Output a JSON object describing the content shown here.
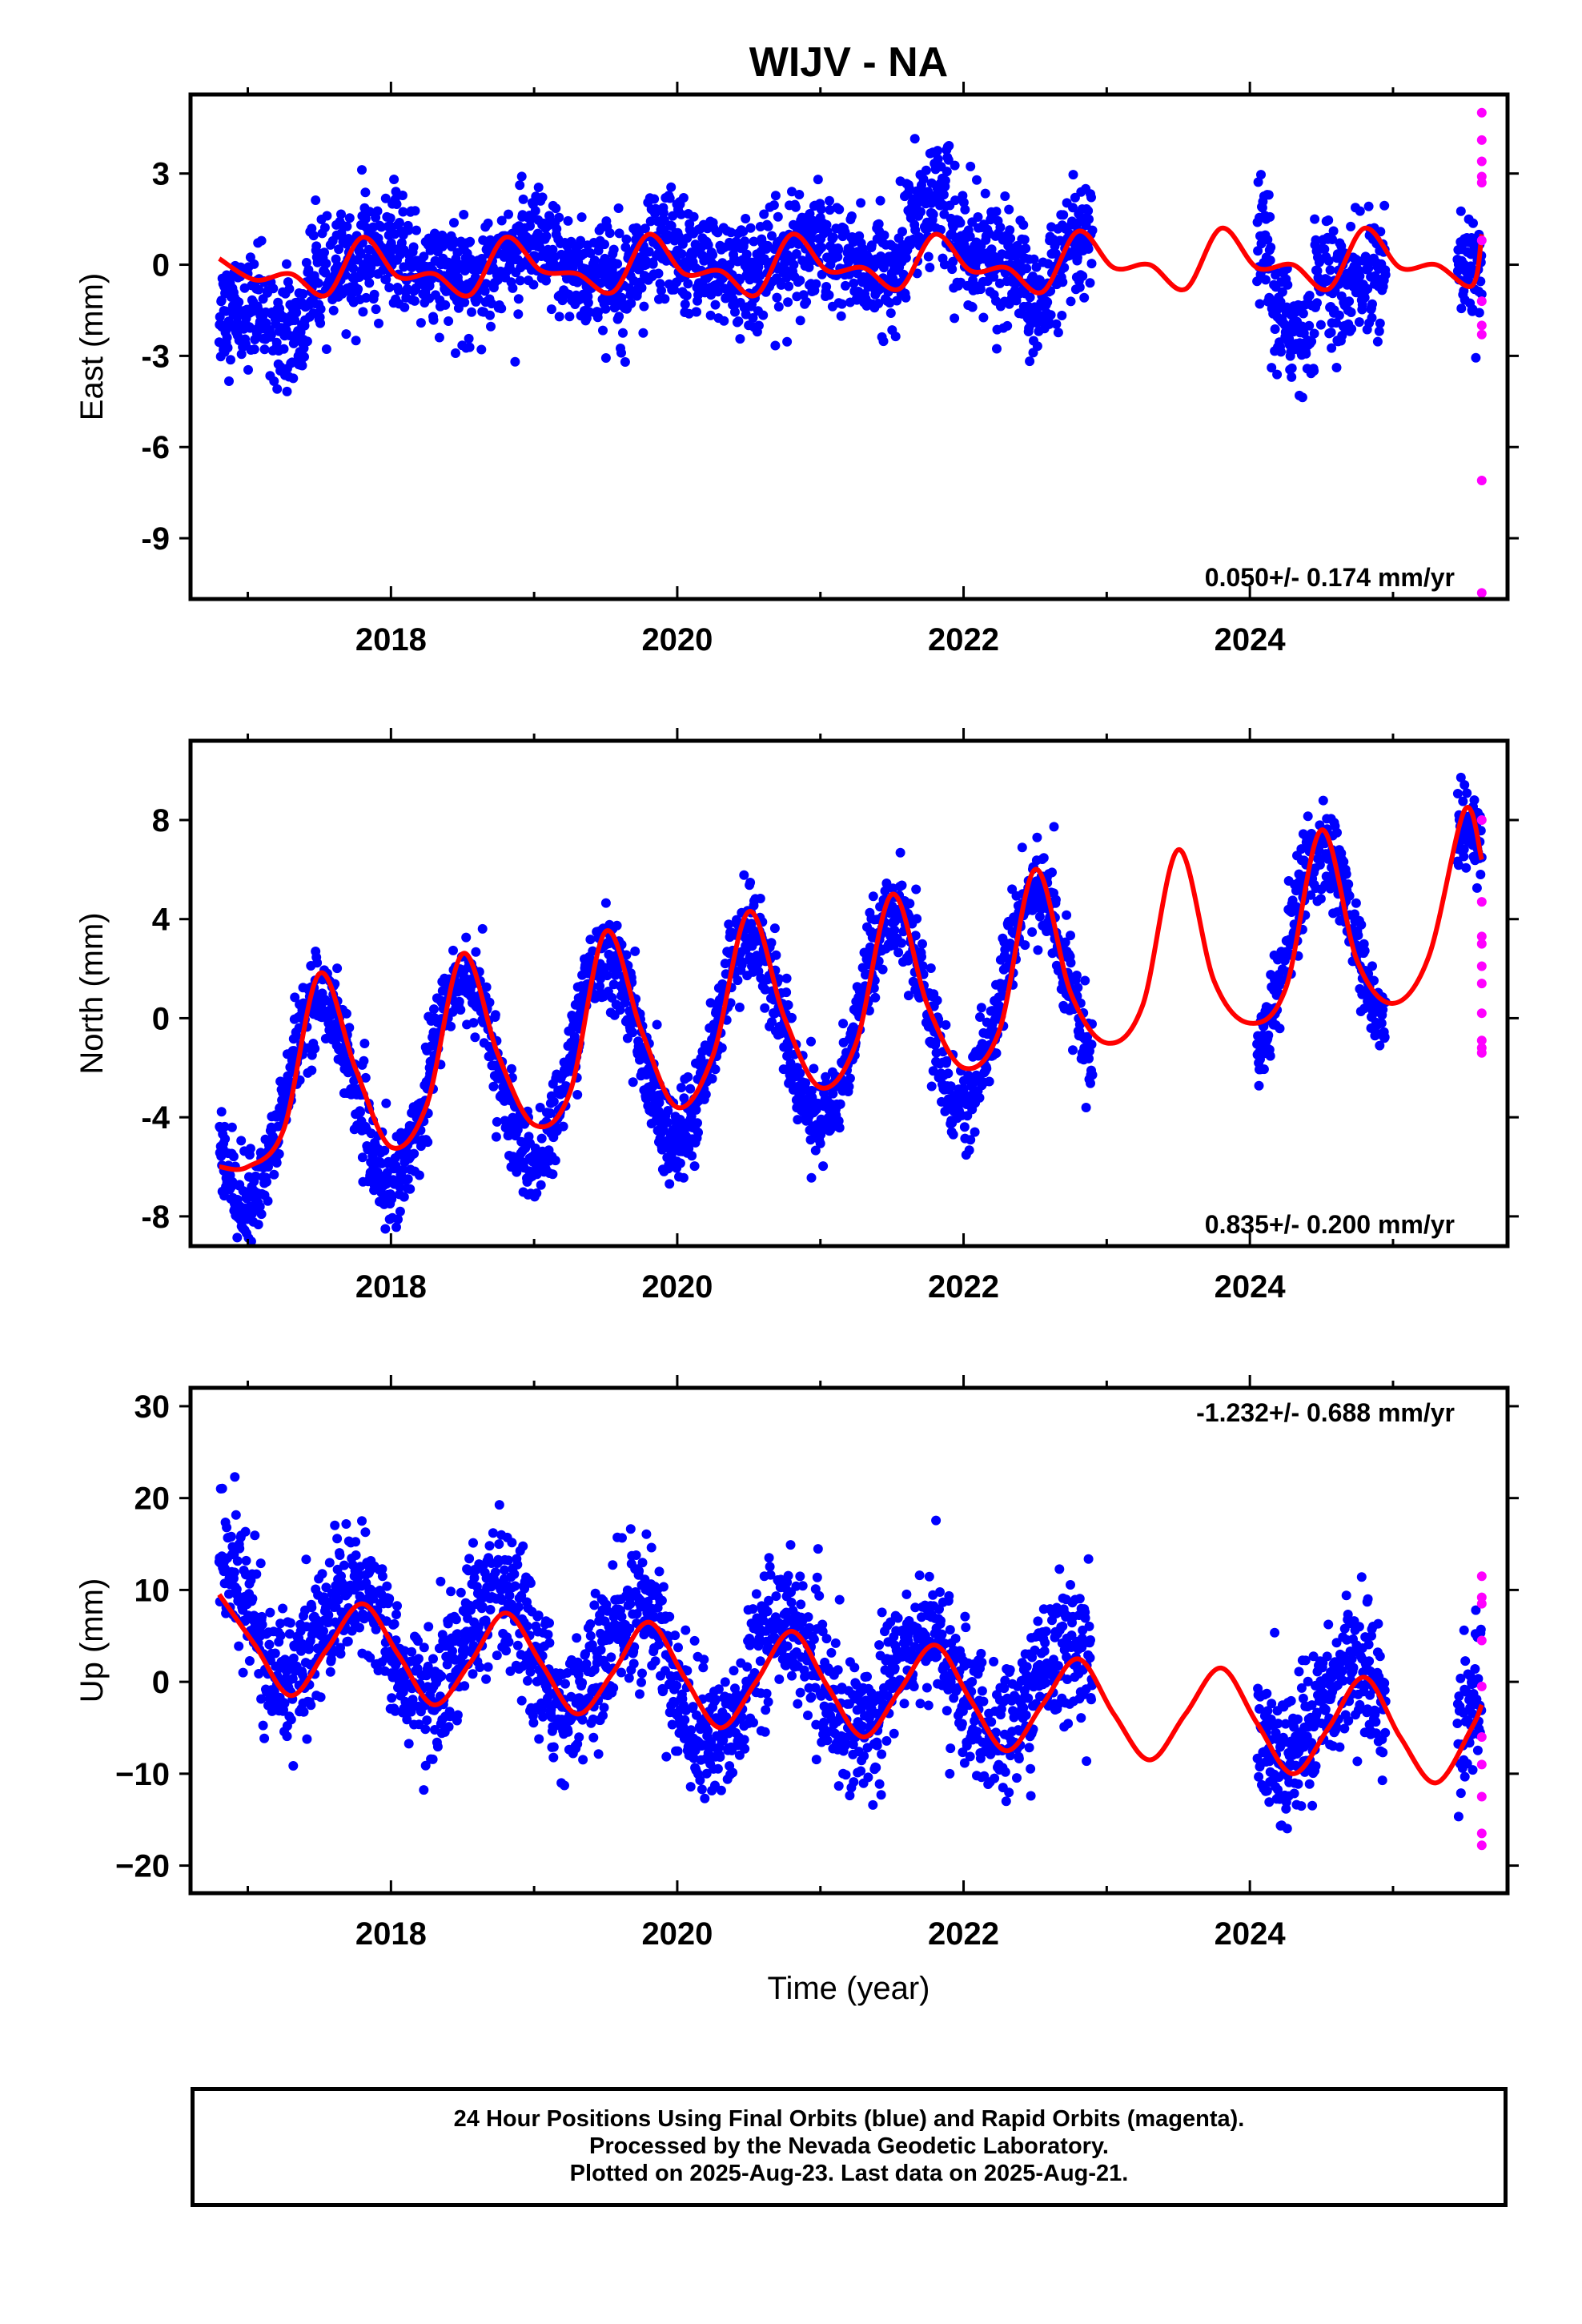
{
  "figure": {
    "title": "WIJV - NA",
    "xlabel": "Time (year)",
    "caption": [
      "24 Hour Positions Using Final Orbits (blue) and Rapid Orbits (magenta).",
      "Processed by the Nevada Geodetic Laboratory.",
      "Plotted on 2025-Aug-23. Last data on 2025-Aug-21."
    ],
    "colors": {
      "final_orbits": "#0000ff",
      "rapid_orbits": "#ff00ff",
      "model": "#ff0000",
      "frame": "#000000"
    }
  },
  "chart_data": [
    {
      "type": "scatter",
      "ylabel": "East (mm)",
      "rate_text": "0.050+/- 0.174 mm/yr",
      "rate_position": "bottom-right",
      "xlim": [
        2016.6,
        2025.8
      ],
      "ylim": [
        -11.0,
        5.6
      ],
      "xticks": [
        2018,
        2020,
        2022,
        2024
      ],
      "yticks": [
        3,
        0,
        -3,
        -6,
        -9
      ],
      "ytick_labels": [
        "3",
        "0",
        "-3",
        "-6",
        "-9"
      ],
      "grid": false,
      "series": [
        {
          "kind": "points",
          "segments": [
            [
              2016.8,
              2022.9
            ],
            [
              2024.05,
              2024.95
            ],
            [
              2025.45,
              2025.62
            ]
          ],
          "trend": {
            "value_at_2021": 0.1,
            "rate": 0.05
          },
          "seasonal": {
            "amp": 0.5,
            "phase": 0.95
          },
          "scatter": 0.9,
          "anomalies": [
            {
              "start": 2016.8,
              "end": 2017.4,
              "offset": -1.8
            },
            {
              "start": 2021.6,
              "end": 2021.9,
              "offset": 1.8
            },
            {
              "start": 2022.45,
              "end": 2022.6,
              "offset": -1.2
            },
            {
              "start": 2024.15,
              "end": 2024.45,
              "offset": -2.0
            },
            {
              "start": 2024.55,
              "end": 2024.95,
              "offset": -1.0
            }
          ]
        },
        {
          "kind": "rapid",
          "x": [
            2025.62,
            2025.62,
            2025.62,
            2025.62,
            2025.62,
            2025.62,
            2025.62,
            2025.62,
            2025.62,
            2025.62,
            2025.62
          ],
          "values": [
            5.0,
            4.1,
            3.4,
            2.7,
            2.9,
            0.8,
            -1.2,
            -2.0,
            -2.3,
            -7.1,
            -10.8
          ]
        },
        {
          "kind": "model",
          "x": [
            2016.8,
            2017.05,
            2017.3,
            2017.55,
            2017.8,
            2018.05,
            2018.3,
            2018.55,
            2018.8,
            2019.05,
            2019.3,
            2019.55,
            2019.8,
            2020.05,
            2020.3,
            2020.55,
            2020.8,
            2021.05,
            2021.3,
            2021.55,
            2021.8,
            2022.05,
            2022.3,
            2022.55,
            2022.8,
            2023.05,
            2023.3,
            2023.55,
            2023.8,
            2024.05,
            2024.3,
            2024.55,
            2024.8,
            2025.05,
            2025.3,
            2025.55,
            2025.62
          ],
          "values": [
            0.2,
            -0.5,
            -0.3,
            -1.0,
            0.9,
            -0.4,
            -0.3,
            -1.0,
            0.9,
            -0.2,
            -0.3,
            -0.9,
            1.0,
            -0.3,
            -0.2,
            -1.0,
            1.0,
            -0.2,
            -0.1,
            -0.8,
            1.0,
            -0.2,
            -0.1,
            -0.9,
            1.1,
            -0.1,
            0.0,
            -0.8,
            1.2,
            -0.1,
            0.0,
            -0.8,
            1.2,
            -0.1,
            0.0,
            -0.7,
            1.0
          ]
        }
      ]
    },
    {
      "type": "scatter",
      "ylabel": "North (mm)",
      "rate_text": "0.835+/- 0.200 mm/yr",
      "rate_position": "bottom-right",
      "xlim": [
        2016.6,
        2025.8
      ],
      "ylim": [
        -9.2,
        11.2
      ],
      "xticks": [
        2018,
        2020,
        2022,
        2024
      ],
      "yticks": [
        8,
        4,
        0,
        -4,
        -8
      ],
      "ytick_labels": [
        "8",
        "4",
        "0",
        "-4",
        "-8"
      ],
      "grid": false,
      "series": [
        {
          "kind": "points",
          "segments": [
            [
              2016.8,
              2022.9
            ],
            [
              2024.05,
              2024.95
            ],
            [
              2025.45,
              2025.62
            ]
          ],
          "trend": {
            "value_at_2021": -0.2,
            "rate": 0.835
          },
          "seasonal": {
            "amp": 4.0,
            "phase": 0.5
          },
          "scatter": 0.9,
          "anomalies": []
        },
        {
          "kind": "rapid",
          "x": [
            2025.62,
            2025.62,
            2025.62,
            2025.62,
            2025.62,
            2025.62,
            2025.62,
            2025.62,
            2025.62,
            2025.62
          ],
          "values": [
            8.0,
            4.7,
            3.3,
            3.0,
            2.1,
            1.4,
            0.2,
            -0.9,
            -1.2,
            -1.4
          ]
        },
        {
          "kind": "model",
          "x": [
            2016.8,
            2017.0,
            2017.25,
            2017.5,
            2017.75,
            2018.0,
            2018.25,
            2018.5,
            2018.75,
            2019.0,
            2019.25,
            2019.5,
            2019.75,
            2020.0,
            2020.25,
            2020.5,
            2020.75,
            2021.0,
            2021.25,
            2021.5,
            2021.75,
            2022.0,
            2022.25,
            2022.5,
            2022.75,
            2023.0,
            2023.25,
            2023.5,
            2023.75,
            2024.0,
            2024.25,
            2024.5,
            2024.75,
            2025.0,
            2025.25,
            2025.5,
            2025.62
          ],
          "values": [
            -6.0,
            -6.0,
            -4.5,
            1.8,
            -2.0,
            -5.2,
            -3.5,
            2.6,
            -1.5,
            -4.3,
            -3.0,
            3.5,
            -0.5,
            -3.6,
            -1.5,
            4.3,
            0.0,
            -2.8,
            -1.0,
            5.0,
            0.5,
            -2.0,
            -0.5,
            6.0,
            1.0,
            -1.0,
            0.5,
            6.8,
            1.5,
            -0.2,
            1.2,
            7.6,
            2.3,
            0.6,
            2.5,
            8.4,
            6.4
          ]
        }
      ]
    },
    {
      "type": "scatter",
      "ylabel": "Up (mm)",
      "rate_text": "-1.232+/- 0.688 mm/yr",
      "rate_position": "top-right",
      "xlim": [
        2016.6,
        2025.8
      ],
      "ylim": [
        -23.0,
        32.0
      ],
      "xticks": [
        2018,
        2020,
        2022,
        2024
      ],
      "yticks": [
        30,
        20,
        10,
        0,
        -10,
        -20
      ],
      "ytick_labels": [
        "30",
        "20",
        "10",
        "0",
        "−10",
        "−20"
      ],
      "grid": false,
      "series": [
        {
          "kind": "points",
          "segments": [
            [
              2016.8,
              2022.9
            ],
            [
              2024.05,
              2024.95
            ],
            [
              2025.45,
              2025.62
            ]
          ],
          "trend": {
            "value_at_2021": 0.8,
            "rate": -1.232
          },
          "seasonal": {
            "amp": 5.5,
            "phase": 0.73
          },
          "scatter": 3.6,
          "anomalies": [
            {
              "start": 2016.8,
              "end": 2017.1,
              "offset": 4.0
            },
            {
              "start": 2019.95,
              "end": 2020.5,
              "offset": -3.0
            }
          ]
        },
        {
          "kind": "rapid",
          "x": [
            2025.62,
            2025.62,
            2025.62,
            2025.62,
            2025.62,
            2025.62,
            2025.62,
            2025.62,
            2025.62,
            2025.62
          ],
          "values": [
            11.5,
            9.2,
            8.5,
            4.5,
            -0.5,
            -6.0,
            -9.0,
            -12.5,
            -16.5,
            -17.8
          ]
        },
        {
          "kind": "model",
          "x": [
            2016.8,
            2017.05,
            2017.3,
            2017.55,
            2017.8,
            2018.05,
            2018.3,
            2018.55,
            2018.8,
            2019.05,
            2019.3,
            2019.55,
            2019.8,
            2020.05,
            2020.3,
            2020.55,
            2020.8,
            2021.05,
            2021.3,
            2021.55,
            2021.8,
            2022.05,
            2022.3,
            2022.55,
            2022.8,
            2023.05,
            2023.3,
            2023.55,
            2023.8,
            2024.05,
            2024.3,
            2024.55,
            2024.8,
            2025.05,
            2025.3,
            2025.55,
            2025.62
          ],
          "values": [
            9.5,
            4.0,
            -1.5,
            3.5,
            8.5,
            3.0,
            -2.5,
            2.0,
            7.5,
            2.0,
            -3.5,
            1.0,
            6.5,
            0.5,
            -5.0,
            0.0,
            5.5,
            -0.5,
            -6.0,
            -1.0,
            4.0,
            -2.0,
            -7.5,
            -2.5,
            2.5,
            -3.5,
            -8.5,
            -3.5,
            1.5,
            -4.5,
            -10.0,
            -5.0,
            0.5,
            -6.0,
            -11.0,
            -5.0,
            -2.5
          ]
        }
      ]
    }
  ]
}
